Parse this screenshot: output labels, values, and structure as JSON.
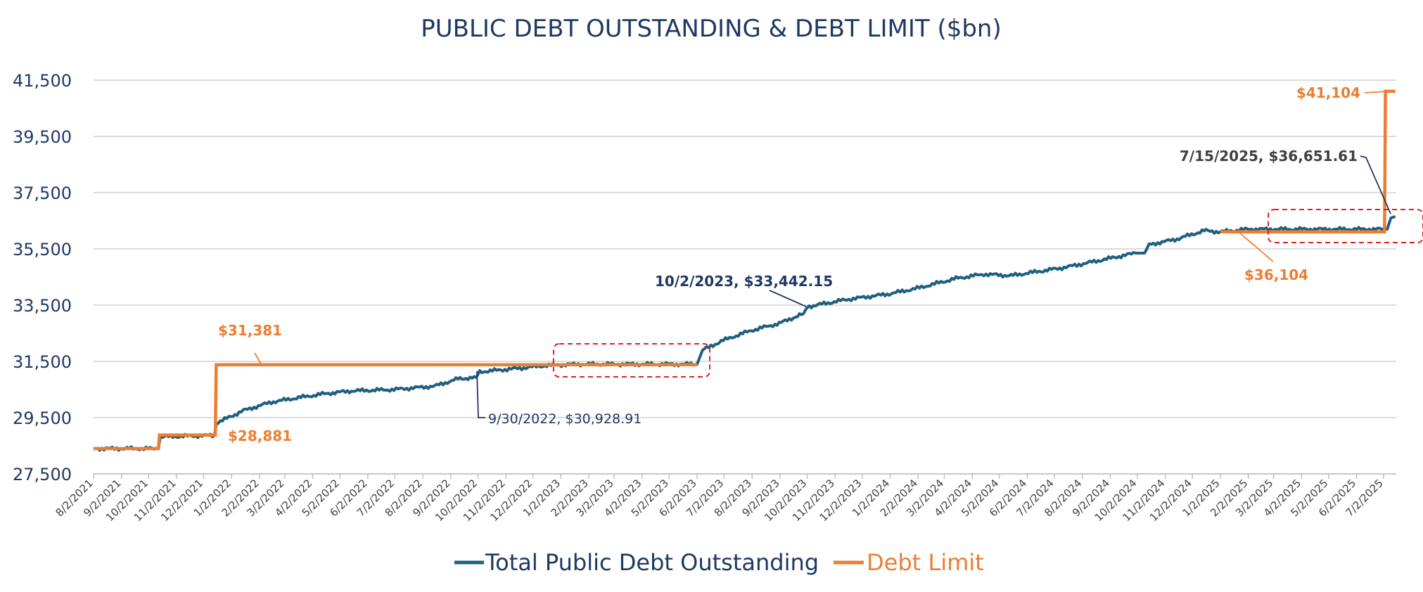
{
  "chart_data": {
    "type": "line",
    "title": "PUBLIC DEBT OUTSTANDING  & DEBT LIMIT ($bn)",
    "xlabel": "",
    "ylabel": "",
    "ylim": [
      27500,
      41500
    ],
    "y_ticks": [
      27500,
      29500,
      31500,
      33500,
      35500,
      37500,
      39500,
      41500
    ],
    "y_tick_labels": [
      "27,500",
      "29,500",
      "31,500",
      "33,500",
      "35,500",
      "37,500",
      "39,500",
      "41,500"
    ],
    "x_range": [
      "2021-08-02",
      "2025-07-16"
    ],
    "x_tick_labels": [
      "8/2/2021",
      "9/2/2021",
      "10/2/2021",
      "11/2/2021",
      "12/2/2021",
      "1/2/2022",
      "2/2/2022",
      "3/2/2022",
      "4/2/2022",
      "5/2/2022",
      "6/2/2022",
      "7/2/2022",
      "8/2/2022",
      "9/2/2022",
      "10/2/2022",
      "11/2/2022",
      "12/2/2022",
      "1/2/2023",
      "2/2/2023",
      "3/2/2023",
      "4/2/2023",
      "5/2/2023",
      "6/2/2023",
      "7/2/2023",
      "8/2/2023",
      "9/2/2023",
      "10/2/2023",
      "11/2/2023",
      "12/2/2023",
      "1/2/2024",
      "2/2/2024",
      "3/2/2024",
      "4/2/2024",
      "5/2/2024",
      "6/2/2024",
      "7/2/2024",
      "8/2/2024",
      "9/2/2024",
      "10/2/2024",
      "11/2/2024",
      "12/2/2024",
      "1/2/2025",
      "2/2/2025",
      "3/2/2025",
      "4/2/2025",
      "5/2/2025",
      "6/2/2025",
      "7/2/2025"
    ],
    "grid": true,
    "legend_position": "bottom",
    "series": [
      {
        "name": "Total Public Debt Outstanding",
        "color": "#1f5f7f",
        "points": [
          [
            "2021-08-02",
            28400
          ],
          [
            "2021-10-13",
            28400
          ],
          [
            "2021-10-15",
            28820
          ],
          [
            "2021-12-14",
            28870
          ],
          [
            "2021-12-16",
            29300
          ],
          [
            "2022-01-15",
            29750
          ],
          [
            "2022-02-15",
            30050
          ],
          [
            "2022-03-15",
            30200
          ],
          [
            "2022-04-15",
            30350
          ],
          [
            "2022-05-15",
            30450
          ],
          [
            "2022-07-01",
            30500
          ],
          [
            "2022-08-15",
            30620
          ],
          [
            "2022-09-10",
            30880
          ],
          [
            "2022-09-30",
            30929
          ],
          [
            "2022-10-04",
            31130
          ],
          [
            "2022-11-15",
            31250
          ],
          [
            "2022-12-15",
            31350
          ],
          [
            "2023-01-19",
            31400
          ],
          [
            "2023-04-01",
            31400
          ],
          [
            "2023-06-02",
            31400
          ],
          [
            "2023-06-08",
            31900
          ],
          [
            "2023-07-01",
            32250
          ],
          [
            "2023-08-01",
            32600
          ],
          [
            "2023-09-01",
            32850
          ],
          [
            "2023-09-28",
            33200
          ],
          [
            "2023-10-02",
            33442
          ],
          [
            "2023-11-15",
            33700
          ],
          [
            "2024-01-01",
            33900
          ],
          [
            "2024-02-01",
            34100
          ],
          [
            "2024-03-15",
            34450
          ],
          [
            "2024-04-15",
            34600
          ],
          [
            "2024-05-15",
            34550
          ],
          [
            "2024-06-15",
            34700
          ],
          [
            "2024-07-15",
            34850
          ],
          [
            "2024-08-15",
            35050
          ],
          [
            "2024-09-30",
            35350
          ],
          [
            "2024-10-10",
            35350
          ],
          [
            "2024-10-15",
            35650
          ],
          [
            "2024-11-15",
            35850
          ],
          [
            "2024-12-15",
            36150
          ],
          [
            "2025-01-02",
            36104
          ],
          [
            "2025-02-01",
            36200
          ],
          [
            "2025-06-30",
            36200
          ],
          [
            "2025-07-06",
            36200
          ],
          [
            "2025-07-10",
            36600
          ],
          [
            "2025-07-15",
            36651.61
          ]
        ]
      },
      {
        "name": "Debt Limit",
        "color": "#ed7d31",
        "points": [
          [
            "2021-08-02",
            28401
          ],
          [
            "2021-10-13",
            28401
          ],
          [
            "2021-10-14",
            28881
          ],
          [
            "2021-12-15",
            28881
          ],
          [
            "2021-12-16",
            31381
          ],
          [
            "2023-06-02",
            31381
          ],
          [
            "2023-06-03",
            null
          ],
          [
            "2024-12-31",
            null
          ],
          [
            "2025-01-02",
            36104
          ],
          [
            "2025-07-03",
            36104
          ],
          [
            "2025-07-04",
            41104
          ],
          [
            "2025-07-15",
            41104
          ]
        ]
      }
    ],
    "annotations": [
      {
        "text": "$31,381",
        "color": "#ed7d31"
      },
      {
        "text": "$28,881",
        "color": "#ed7d31"
      },
      {
        "text": "9/30/2022, $30,928.91",
        "color": "#1f3864"
      },
      {
        "text": "10/2/2023, $33,442.15",
        "color": "#1f3864"
      },
      {
        "text": "$36,104",
        "color": "#ed7d31"
      },
      {
        "text": "$41,104",
        "color": "#ed7d31"
      },
      {
        "text": "7/15/2025, $36,651.61",
        "color": "#404040"
      }
    ],
    "highlight_boxes_color": "#e02020"
  }
}
